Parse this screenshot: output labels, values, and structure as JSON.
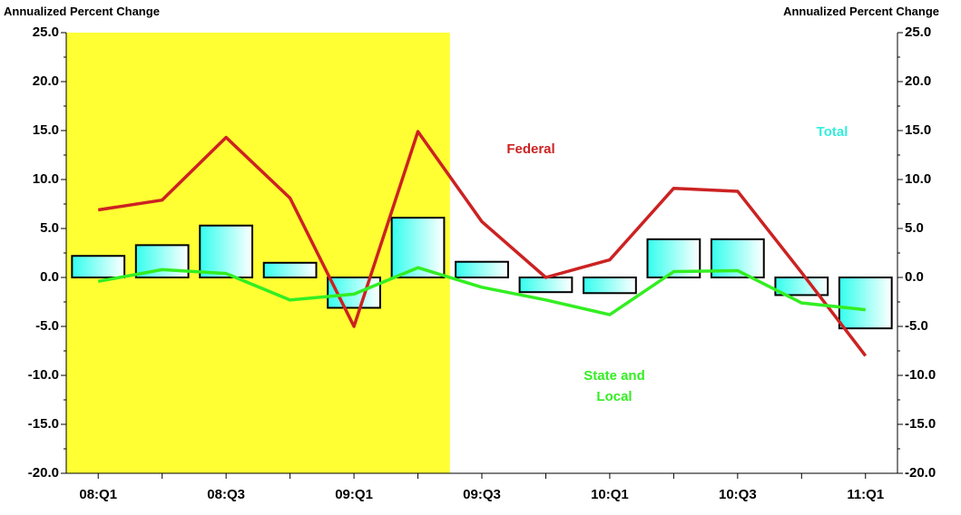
{
  "chart_data": {
    "type": "bar-line",
    "y_label": "Annualized Percent Change",
    "y2_label": "Annualized Percent Change",
    "categories": [
      "08:Q1",
      null,
      "08:Q3",
      null,
      "09:Q1",
      null,
      "09:Q3",
      null,
      "10:Q1",
      null,
      "10:Q3",
      null,
      "11:Q1"
    ],
    "series": [
      {
        "name": "Total",
        "color": "#33ffee",
        "kind": "bar",
        "values": [
          2.2,
          3.3,
          5.3,
          1.5,
          -3.1,
          6.1,
          1.6,
          -1.5,
          -1.6,
          3.9,
          3.9,
          -1.8,
          -5.2
        ]
      },
      {
        "name": "Federal",
        "color": "#cc2222",
        "kind": "line",
        "values": [
          6.9,
          7.9,
          14.3,
          8.1,
          -5.0,
          14.9,
          5.7,
          0.0,
          1.8,
          9.1,
          8.8,
          0.5,
          -8.0
        ]
      },
      {
        "name": "State and Local",
        "color": "#33ee22",
        "kind": "line",
        "values": [
          -0.4,
          0.8,
          0.4,
          -2.3,
          -1.7,
          1.0,
          -1.0,
          -2.3,
          -3.8,
          0.6,
          0.7,
          -2.6,
          -3.3
        ]
      }
    ],
    "ylim": [
      -20,
      25
    ],
    "yticks": [
      {
        "value": -20,
        "label": "-20.0"
      },
      {
        "value": -15,
        "label": "-15.0"
      },
      {
        "value": -10,
        "label": "-10.0"
      },
      {
        "value": -5,
        "label": "-5.0"
      },
      {
        "value": 0,
        "label": "0.0"
      },
      {
        "value": 5,
        "label": "5.0"
      },
      {
        "value": 10,
        "label": "10.0"
      },
      {
        "value": 15,
        "label": "15.0"
      },
      {
        "value": 20,
        "label": "20.0"
      },
      {
        "value": 25,
        "label": "25.0"
      }
    ],
    "y2lim": [
      -20,
      25
    ],
    "y2ticks": [
      {
        "value": -20,
        "label": "-20.0"
      },
      {
        "value": -15,
        "label": "-15.0"
      },
      {
        "value": -10,
        "label": "-10.0"
      },
      {
        "value": -5,
        "label": "-5.0"
      },
      {
        "value": 0,
        "label": "0.0"
      },
      {
        "value": 5,
        "label": "5.0"
      },
      {
        "value": 10,
        "label": "10.0"
      },
      {
        "value": 15,
        "label": "15.0"
      },
      {
        "value": 20,
        "label": "20.0"
      },
      {
        "value": 25,
        "label": "25.0"
      }
    ],
    "shaded_span": {
      "from": 0,
      "to": 5,
      "color": "#ffff33"
    }
  }
}
